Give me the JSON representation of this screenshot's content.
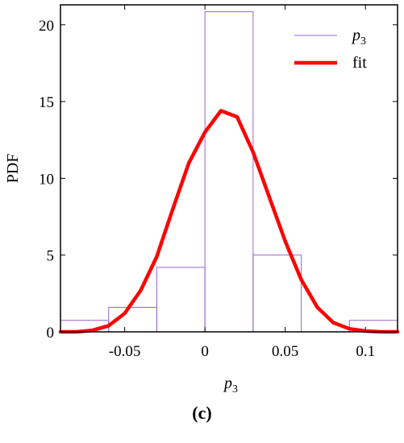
{
  "chart_data": {
    "type": "bar",
    "title": "",
    "xlabel": "p",
    "xlabel_subscript": "3",
    "ylabel": "PDF",
    "xlim": [
      -0.09,
      0.12
    ],
    "ylim": [
      0,
      21.3
    ],
    "xticks": [
      -0.05,
      0,
      0.05,
      0.1
    ],
    "xtick_labels": [
      "-0.05",
      "0",
      "0.05",
      "0.1"
    ],
    "yticks": [
      0,
      5,
      10,
      15,
      20
    ],
    "ytick_labels": [
      "0",
      "5",
      "10",
      "15",
      "20"
    ],
    "grid": false,
    "legend_position": "top-right",
    "series": [
      {
        "name": "p",
        "name_subscript": "3",
        "kind": "histogram",
        "color": "#9966cc",
        "bins": [
          {
            "x0": -0.09,
            "x1": -0.06,
            "value": 0.75
          },
          {
            "x0": -0.06,
            "x1": -0.03,
            "value": 1.6
          },
          {
            "x0": -0.03,
            "x1": 0.0,
            "value": 4.2
          },
          {
            "x0": 0.0,
            "x1": 0.03,
            "value": 20.85
          },
          {
            "x0": 0.03,
            "x1": 0.06,
            "value": 5.0
          },
          {
            "x0": 0.06,
            "x1": 0.09,
            "value": 0.0
          },
          {
            "x0": 0.09,
            "x1": 0.12,
            "value": 0.75
          }
        ]
      },
      {
        "name": "fit",
        "kind": "line",
        "color": "#ff0000",
        "x": [
          -0.09,
          -0.08,
          -0.07,
          -0.06,
          -0.05,
          -0.04,
          -0.03,
          -0.02,
          -0.01,
          0.0,
          0.01,
          0.02,
          0.03,
          0.04,
          0.05,
          0.06,
          0.07,
          0.08,
          0.09,
          0.1,
          0.11,
          0.12
        ],
        "y": [
          0.0,
          0.0,
          0.1,
          0.4,
          1.2,
          2.7,
          4.9,
          8.0,
          11.0,
          13.0,
          14.4,
          14.0,
          11.7,
          8.8,
          5.9,
          3.4,
          1.6,
          0.6,
          0.2,
          0.05,
          0.0,
          0.0
        ]
      }
    ]
  },
  "panel_label": "(c)",
  "colors": {
    "histogram": "#9966cc",
    "fit": "#ff0000",
    "axis": "#000000"
  }
}
